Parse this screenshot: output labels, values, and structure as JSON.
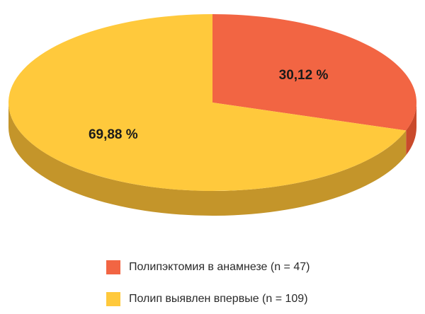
{
  "chart_data": {
    "type": "pie",
    "title": "",
    "slices": [
      {
        "label": "Полипэктомия в анамнезе (n = 47)",
        "value": 30.12,
        "display": "30,12 %",
        "color": "#f26543",
        "side_color": "#c94a2b"
      },
      {
        "label": "Полип выявлен впервые (n = 109)",
        "value": 69.88,
        "display": "69,88 %",
        "color": "#ffc93c",
        "side_color": "#c4952a"
      }
    ],
    "legend_position": "bottom",
    "style": "3d"
  }
}
